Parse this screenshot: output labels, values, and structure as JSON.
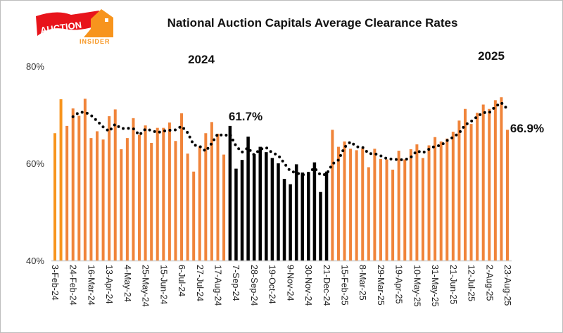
{
  "logo": {
    "text_top": "AUCTION",
    "text_bottom": "INSIDER",
    "colors": {
      "red": "#e8141b",
      "orange": "#f7941d"
    }
  },
  "chart_data": {
    "type": "bar",
    "title": "National Auction Capitals Average Clearance Rates",
    "ylim": [
      40,
      80
    ],
    "yticks": [
      "40%",
      "60%",
      "80%"
    ],
    "ytick_values": [
      40,
      60,
      80
    ],
    "grid": false,
    "legend": "none",
    "xtick_labels": [
      "3-Feb-24",
      "24-Feb-24",
      "16-Mar-24",
      "13-Apr-24",
      "4-May-24",
      "25-May-24",
      "15-Jun-24",
      "6-Jul-24",
      "27-Jul-24",
      "17-Aug-24",
      "7-Sep-24",
      "28-Sep-24",
      "19-Oct-24",
      "9-Nov-24",
      "30-Nov-24",
      "21-Dec-24",
      "15-Feb-25",
      "8-Mar-25",
      "29-Mar-25",
      "19-Apr-25",
      "10-May-25",
      "31-May-25",
      "21-Jun-25",
      "12-Jul-25",
      "2-Aug-25",
      "23-Aug-25"
    ],
    "xtick_every": 3,
    "values": [
      66.2,
      73.2,
      67.7,
      71.3,
      69.8,
      73.3,
      65.2,
      66.6,
      64.9,
      69.7,
      71.1,
      62.9,
      65.2,
      69.3,
      65.9,
      67.8,
      64.2,
      67.3,
      67.3,
      68.4,
      64.6,
      70.3,
      62.0,
      58.3,
      63.5,
      66.2,
      68.5,
      66.1,
      61.8,
      67.7,
      58.9,
      60.7,
      65.5,
      61.9,
      63.4,
      62.3,
      61.1,
      60.0,
      56.8,
      55.7,
      59.8,
      58.1,
      58.2,
      60.2,
      54.1,
      58.3,
      66.9,
      63.4,
      64.5,
      63.0,
      62.7,
      63.1,
      59.2,
      63.0,
      60.9,
      60.8,
      58.7,
      62.6,
      60.8,
      62.9,
      63.9,
      61.1,
      63.7,
      65.4,
      64.5,
      65.1,
      66.5,
      68.8,
      71.2,
      68.1,
      70.4,
      72.1,
      71.2,
      73.0,
      73.6,
      66.9
    ],
    "highlight_range": [
      29,
      45
    ],
    "trend": {
      "type": "moving-average",
      "window": 4,
      "style": "dotted",
      "color": "#000000"
    },
    "colors": {
      "default": "#f0843a",
      "highlight": "#000000"
    },
    "annotations": [
      {
        "text": "2024"
      },
      {
        "text": "2025"
      },
      {
        "text": "61.7%"
      },
      {
        "text": "66.9%"
      }
    ]
  }
}
